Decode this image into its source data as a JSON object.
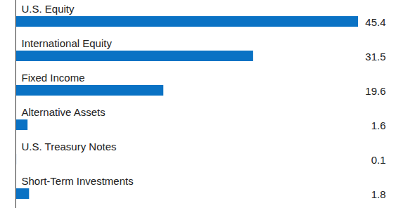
{
  "chart_data": {
    "type": "bar",
    "orientation": "horizontal",
    "categories": [
      "U.S. Equity",
      "International Equity",
      "Fixed Income",
      "Alternative Assets",
      "U.S. Treasury Notes",
      "Short-Term Investments"
    ],
    "values": [
      45.4,
      31.5,
      19.6,
      1.6,
      0.1,
      1.8
    ],
    "color": "#0a72c4",
    "data_labels": true,
    "tick_labels": false,
    "grid": false
  }
}
